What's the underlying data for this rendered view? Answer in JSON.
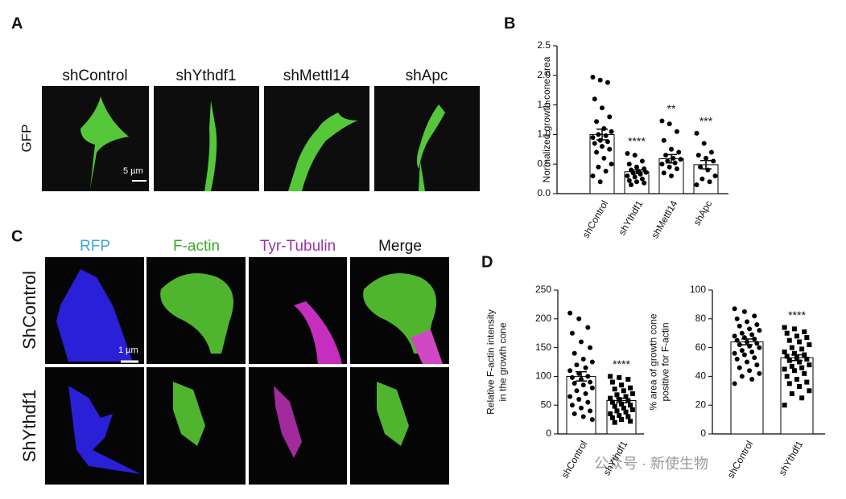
{
  "panels": {
    "a": "A",
    "b": "B",
    "c": "C",
    "d": "D"
  },
  "panel_a": {
    "columns": [
      "shControl",
      "shYthdf1",
      "shMettl14",
      "shApc"
    ],
    "row_label": "GFP",
    "scale_bar": "5 µm"
  },
  "panel_c": {
    "columns": [
      "RFP",
      "F-actin",
      "Tyr-Tubulin",
      "Merge"
    ],
    "rows": [
      "ShControl",
      "ShYthdf1"
    ],
    "scale_bar": "1 µm"
  },
  "watermark": "公众号 · 新使生物",
  "chart_data": [
    {
      "type": "bar",
      "ylabel": [
        "Normalized growth cone area"
      ],
      "categories": [
        "shControl",
        "shYthdf1",
        "shMettl14",
        "shApc"
      ],
      "values": [
        1.0,
        0.37,
        0.59,
        0.49
      ],
      "errors": [
        0.09,
        0.03,
        0.07,
        0.07
      ],
      "annotations": [
        null,
        "****",
        "**",
        "***"
      ],
      "markers": [
        "circle",
        "circle",
        "circle",
        "circle"
      ],
      "points": [
        [
          1.97,
          1.92,
          1.88,
          1.6,
          1.45,
          1.3,
          1.22,
          1.1,
          1.05,
          1.0,
          0.98,
          0.95,
          0.9,
          0.88,
          0.85,
          0.8,
          0.75,
          0.7,
          0.6,
          0.5,
          0.45,
          0.38,
          0.3,
          0.2
        ],
        [
          0.68,
          0.65,
          0.55,
          0.5,
          0.45,
          0.42,
          0.4,
          0.38,
          0.36,
          0.35,
          0.33,
          0.3,
          0.28,
          0.25,
          0.22,
          0.2,
          0.18,
          0.15
        ],
        [
          1.23,
          1.18,
          1.05,
          0.9,
          0.75,
          0.7,
          0.65,
          0.6,
          0.58,
          0.55,
          0.52,
          0.5,
          0.45,
          0.42,
          0.35,
          0.3
        ],
        [
          1.02,
          0.85,
          0.7,
          0.65,
          0.6,
          0.55,
          0.45,
          0.4,
          0.3,
          0.25,
          0.2,
          0.15
        ]
      ],
      "ylim": [
        0,
        2.5
      ],
      "yticks": [
        {
          "value": 0,
          "label": "0.0"
        },
        0.5,
        {
          "value": 1,
          "label": "1.0"
        },
        1.5,
        {
          "value": 2,
          "label": "2.0"
        },
        2.5
      ]
    },
    {
      "type": "bar",
      "ylabel": [
        "Relative F-actin intensity",
        "in the growth cone"
      ],
      "categories": [
        "shControl",
        "shYthdf1"
      ],
      "values": [
        100,
        58
      ],
      "errors": [
        8,
        4
      ],
      "annotations": [
        null,
        "****"
      ],
      "markers": [
        "circle",
        "square"
      ],
      "points": [
        [
          210,
          200,
          185,
          175,
          160,
          150,
          140,
          130,
          125,
          120,
          115,
          110,
          105,
          100,
          98,
          95,
          90,
          88,
          85,
          80,
          75,
          70,
          65,
          60,
          55,
          50,
          45,
          40,
          35,
          30,
          25
        ],
        [
          100,
          98,
          95,
          90,
          85,
          80,
          78,
          75,
          70,
          68,
          65,
          62,
          60,
          58,
          55,
          52,
          50,
          48,
          45,
          42,
          40,
          38,
          35,
          32,
          30,
          28,
          25,
          22,
          20
        ]
      ],
      "ylim": [
        0,
        250
      ],
      "yticks": [
        0,
        50,
        100,
        150,
        200,
        250
      ]
    },
    {
      "type": "bar",
      "ylabel": [
        "% area of growth cone",
        "positive for F-actin"
      ],
      "categories": [
        "shControl",
        "shYthdf1"
      ],
      "values": [
        64,
        53
      ],
      "errors": [
        2,
        2
      ],
      "annotations": [
        null,
        "****"
      ],
      "markers": [
        "circle",
        "square"
      ],
      "points": [
        [
          87,
          85,
          82,
          80,
          78,
          76,
          75,
          73,
          72,
          70,
          69,
          68,
          67,
          66,
          65,
          64,
          63,
          62,
          61,
          60,
          58,
          57,
          56,
          55,
          53,
          52,
          50,
          48,
          46,
          44,
          42,
          40,
          38,
          35
        ],
        [
          74,
          73,
          71,
          70,
          68,
          67,
          65,
          64,
          62,
          60,
          59,
          57,
          56,
          55,
          54,
          53,
          52,
          51,
          50,
          48,
          47,
          46,
          45,
          44,
          42,
          40,
          38,
          36,
          35,
          33,
          30,
          28,
          25,
          20
        ]
      ],
      "ylim": [
        0,
        100
      ],
      "yticks": [
        0,
        20,
        40,
        60,
        80,
        100
      ]
    }
  ]
}
